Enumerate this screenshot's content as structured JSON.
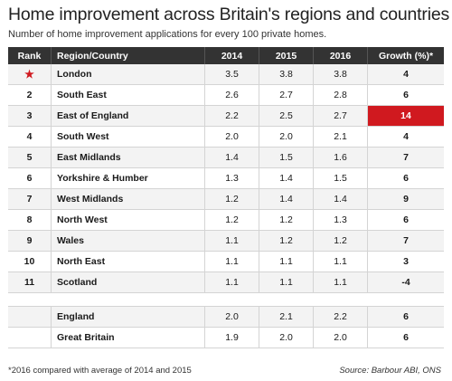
{
  "chart_data": {
    "type": "table",
    "title": "Home improvement across Britain's regions and countries",
    "subtitle": "Number of home improvement applications for every 100 private homes.",
    "columns": [
      "Rank",
      "Region/Country",
      "2014",
      "2015",
      "2016",
      "Growth (%)*"
    ],
    "rows": [
      {
        "rank": "",
        "region": "London",
        "y2014": "3.5",
        "y2015": "3.8",
        "y2016": "3.8",
        "growth": "4"
      },
      {
        "rank": "2",
        "region": "South East",
        "y2014": "2.6",
        "y2015": "2.7",
        "y2016": "2.8",
        "growth": "6"
      },
      {
        "rank": "3",
        "region": "East of England",
        "y2014": "2.2",
        "y2015": "2.5",
        "y2016": "2.7",
        "growth": "14"
      },
      {
        "rank": "4",
        "region": "South West",
        "y2014": "2.0",
        "y2015": "2.0",
        "y2016": "2.1",
        "growth": "4"
      },
      {
        "rank": "5",
        "region": "East Midlands",
        "y2014": "1.4",
        "y2015": "1.5",
        "y2016": "1.6",
        "growth": "7"
      },
      {
        "rank": "6",
        "region": "Yorkshire & Humber",
        "y2014": "1.3",
        "y2015": "1.4",
        "y2016": "1.5",
        "growth": "6"
      },
      {
        "rank": "7",
        "region": "West Midlands",
        "y2014": "1.2",
        "y2015": "1.4",
        "y2016": "1.4",
        "growth": "9"
      },
      {
        "rank": "8",
        "region": "North West",
        "y2014": "1.2",
        "y2015": "1.2",
        "y2016": "1.3",
        "growth": "6"
      },
      {
        "rank": "9",
        "region": "Wales",
        "y2014": "1.1",
        "y2015": "1.2",
        "y2016": "1.2",
        "growth": "7"
      },
      {
        "rank": "10",
        "region": "North East",
        "y2014": "1.1",
        "y2015": "1.1",
        "y2016": "1.1",
        "growth": "3"
      },
      {
        "rank": "11",
        "region": "Scotland",
        "y2014": "1.1",
        "y2015": "1.1",
        "y2016": "1.1",
        "growth": "-4"
      }
    ],
    "totals": [
      {
        "region": "England",
        "y2014": "2.0",
        "y2015": "2.1",
        "y2016": "2.2",
        "growth": "6"
      },
      {
        "region": "Great Britain",
        "y2014": "1.9",
        "y2015": "2.0",
        "y2016": "2.0",
        "growth": "6"
      }
    ],
    "highlight_row": 2,
    "highlight_color": "#d0191f",
    "rank_one_marker": "star-icon",
    "footnote": "*2016 compared with average of 2014 and 2015",
    "source": "Source: Barbour ABI, ONS"
  }
}
